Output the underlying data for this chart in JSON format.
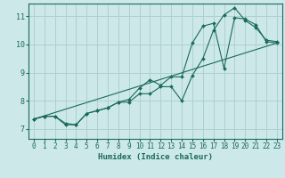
{
  "xlabel": "Humidex (Indice chaleur)",
  "bg_color": "#cce8e8",
  "grid_color": "#b0d0d0",
  "line_color": "#1a6b5a",
  "xlim": [
    -0.5,
    23.5
  ],
  "ylim": [
    6.65,
    11.45
  ],
  "xticks": [
    0,
    1,
    2,
    3,
    4,
    5,
    6,
    7,
    8,
    9,
    10,
    11,
    12,
    13,
    14,
    15,
    16,
    17,
    18,
    19,
    20,
    21,
    22,
    23
  ],
  "yticks": [
    7,
    8,
    9,
    10,
    11
  ],
  "line1_x": [
    0,
    1,
    2,
    3,
    4,
    5,
    6,
    7,
    8,
    9,
    10,
    11,
    12,
    13,
    14,
    15,
    16,
    17,
    18,
    19,
    20,
    21,
    22,
    23
  ],
  "line1_y": [
    7.35,
    7.45,
    7.45,
    7.2,
    7.15,
    7.55,
    7.65,
    7.75,
    7.95,
    7.95,
    8.25,
    8.25,
    8.5,
    8.5,
    8.0,
    8.9,
    9.5,
    10.5,
    11.05,
    11.3,
    10.85,
    10.6,
    10.15,
    10.1
  ],
  "line2_x": [
    0,
    1,
    2,
    3,
    4,
    5,
    6,
    7,
    8,
    9,
    10,
    11,
    12,
    13,
    14,
    15,
    16,
    17,
    18,
    19,
    20,
    21,
    22,
    23
  ],
  "line2_y": [
    7.35,
    7.45,
    7.45,
    7.15,
    7.15,
    7.55,
    7.65,
    7.75,
    7.95,
    8.05,
    8.45,
    8.75,
    8.55,
    8.85,
    8.85,
    10.05,
    10.65,
    10.75,
    9.15,
    10.95,
    10.9,
    10.7,
    10.1,
    10.05
  ],
  "line3_x": [
    0,
    23
  ],
  "line3_y": [
    7.35,
    10.05
  ]
}
